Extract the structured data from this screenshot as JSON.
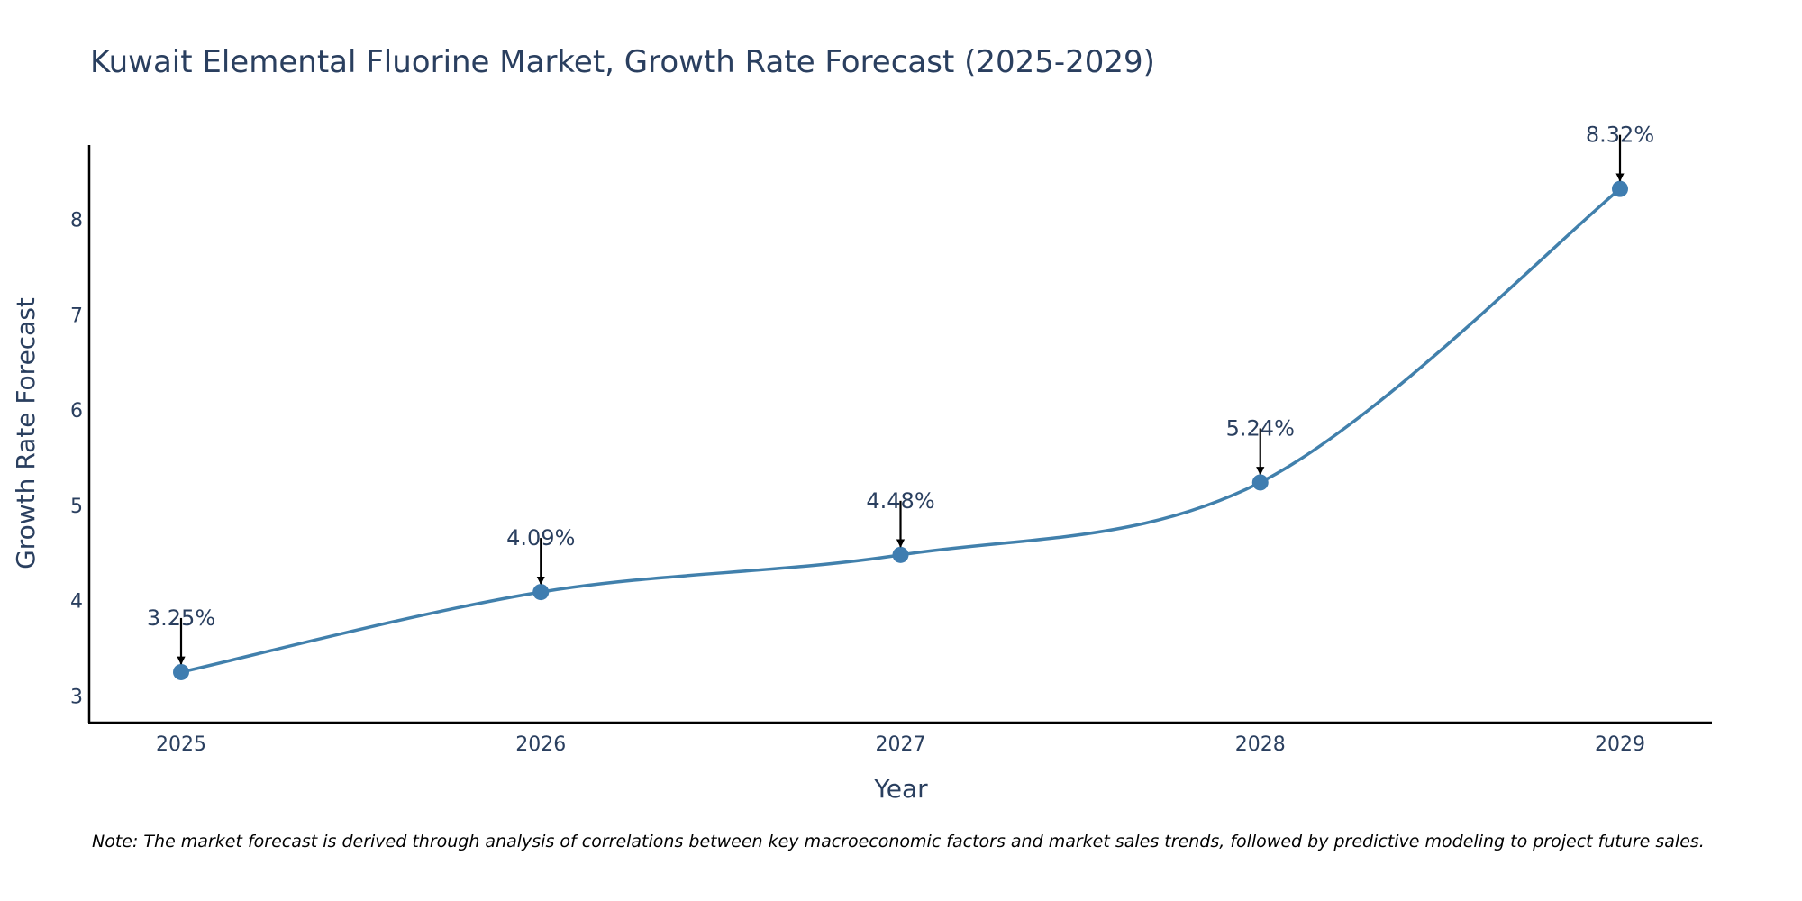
{
  "chart_data": {
    "type": "line",
    "title": "Kuwait Elemental Fluorine Market, Growth Rate Forecast (2025-2029)",
    "xlabel": "Year",
    "ylabel": "Growth Rate Forecast",
    "categories": [
      "2025",
      "2026",
      "2027",
      "2028",
      "2029"
    ],
    "values": [
      3.25,
      4.09,
      4.48,
      5.24,
      8.32
    ],
    "data_labels": [
      "3.25%",
      "4.09%",
      "4.48%",
      "5.24%",
      "8.32%"
    ],
    "ylim": [
      2.72,
      8.78
    ],
    "yticks": [
      3,
      4,
      5,
      6,
      7,
      8
    ],
    "grid": false,
    "line_shape": "spline",
    "note": "Note: The market forecast is derived through analysis of correlations between key macroeconomic factors and market sales trends, followed by predictive modeling to project future sales."
  },
  "colors": {
    "line": "#4180ac",
    "marker": "#3f7db0",
    "axis": "#000000",
    "text": "#2a3f5f",
    "arrow": "#000000"
  }
}
